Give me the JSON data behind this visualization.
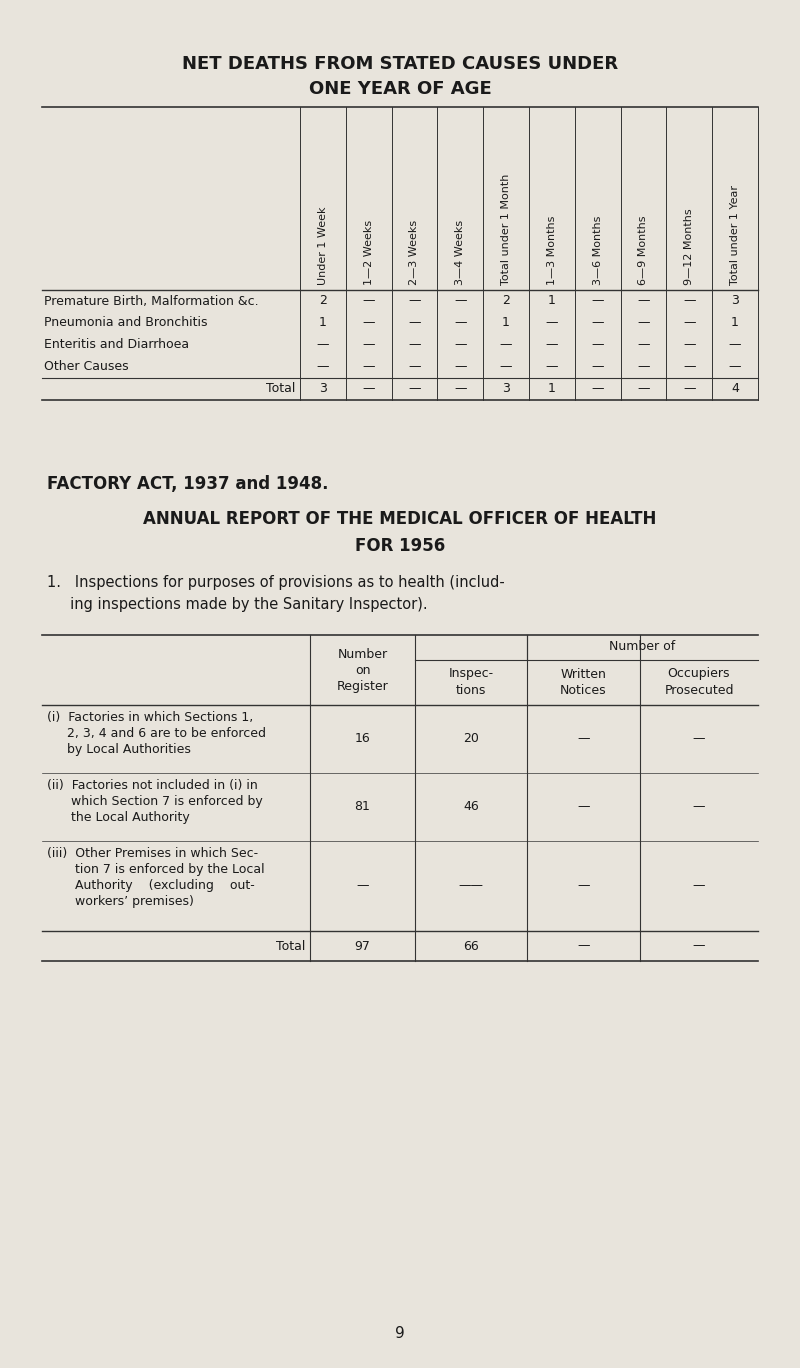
{
  "bg_color": "#e8e4dc",
  "title1": "NET DEATHS FROM STATED CAUSES UNDER",
  "title2": "ONE YEAR OF AGE",
  "table1_col_headers": [
    "Under 1 Week",
    "1—2 Weeks",
    "2—3 Weeks",
    "3—4 Weeks",
    "Total under 1 Month",
    "1—3 Months",
    "3—6 Months",
    "6—9 Months",
    "9—12 Months",
    "Total under 1 Year"
  ],
  "table1_row_labels": [
    "Premature Birth, Malformation &c.",
    "Pneumonia and Bronchitis",
    "Enteritis and Diarrhoea",
    "Other Causes"
  ],
  "table1_data": [
    [
      "2",
      "—",
      "—",
      "—",
      "2",
      "1",
      "—",
      "—",
      "—",
      "3"
    ],
    [
      "1",
      "—",
      "—",
      "—",
      "1",
      "—",
      "—",
      "—",
      "—",
      "1"
    ],
    [
      "—",
      "—",
      "—",
      "—",
      "—",
      "—",
      "—",
      "—",
      "—",
      "—"
    ],
    [
      "—",
      "—",
      "—",
      "—",
      "—",
      "—",
      "—",
      "—",
      "—",
      "—"
    ]
  ],
  "table1_total_label": "Total",
  "table1_total_data": [
    "3",
    "—",
    "—",
    "—",
    "3",
    "1",
    "—",
    "—",
    "—",
    "4"
  ],
  "section_title1": "FACTORY ACT, 1937 and 1948.",
  "section_title2": "ANNUAL REPORT OF THE MEDICAL OFFICER OF HEALTH",
  "section_title3": "FOR 1956",
  "section_para1": "1.   Inspections for purposes of provisions as to health (includ-",
  "section_para2": "     ing inspections made by the Sanitary Inspector).",
  "table2_rows": [
    {
      "label_lines": [
        "(i)  Factories in which Sections 1,",
        "     2, 3, 4 and 6 are to be enforced",
        "     by Local Authorities"
      ],
      "values": [
        "16",
        "20",
        "—",
        "—"
      ]
    },
    {
      "label_lines": [
        "(ii)  Factories not included in (i) in",
        "      which Section 7 is enforced by",
        "      the Local Authority"
      ],
      "values": [
        "81",
        "46",
        "—",
        "—"
      ]
    },
    {
      "label_lines": [
        "(iii)  Other Premises in which Sec-",
        "       tion 7 is enforced by the Local",
        "       Authority    (excluding    out-",
        "       workers’ premises)"
      ],
      "values": [
        "—",
        "——",
        "—",
        "—"
      ]
    }
  ],
  "table2_total_label": "Total",
  "table2_total_values": [
    "97",
    "66",
    "—",
    "—"
  ],
  "page_number": "9"
}
